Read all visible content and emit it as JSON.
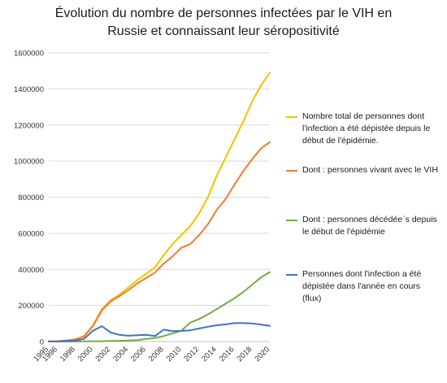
{
  "chart_data": {
    "type": "line",
    "title": [
      "Évolution du nombre de personnes infectées par le VIH en",
      "Russie et connaissant leur séropositivité"
    ],
    "x": [
      1995,
      1996,
      1997,
      1998,
      1999,
      2000,
      2001,
      2002,
      2003,
      2004,
      2005,
      2006,
      2007,
      2008,
      2009,
      2010,
      2011,
      2012,
      2013,
      2014,
      2015,
      2016,
      2017,
      2018,
      2019,
      2020
    ],
    "x_ticks": [
      "1995",
      "1996",
      "1998",
      "2000",
      "2002",
      "2004",
      "2006",
      "2008",
      "2010",
      "2012",
      "2014",
      "2016",
      "2018",
      "2020"
    ],
    "y_ticks": [
      "0",
      "200000",
      "400000",
      "600000",
      "800000",
      "1000000",
      "1200000",
      "1400000",
      "1600000"
    ],
    "ylim": [
      0,
      1600000
    ],
    "grid": "horizontal",
    "legend_position": "right",
    "series": [
      {
        "name": "Nombre total de personnes dont l'infection a été dépistée depuis le début de l'épidémie.",
        "color": "#F5C200",
        "values": [
          1000,
          2000,
          6000,
          12000,
          30000,
          90000,
          180000,
          230000,
          260000,
          300000,
          340000,
          375000,
          410000,
          480000,
          540000,
          590000,
          640000,
          710000,
          800000,
          920000,
          1020000,
          1120000,
          1220000,
          1330000,
          1420000,
          1490000
        ]
      },
      {
        "name": "Dont : personnes vivant avec le VIH",
        "color": "#ED7D31",
        "values": [
          1000,
          2000,
          6000,
          12000,
          28000,
          85000,
          172000,
          222000,
          252000,
          285000,
          322000,
          352000,
          382000,
          432000,
          472000,
          520000,
          540000,
          590000,
          650000,
          730000,
          790000,
          870000,
          945000,
          1010000,
          1070000,
          1105000
        ]
      },
      {
        "name": "Dont : personnes décédée`s depuis le début de l'épidémie",
        "color": "#70AD47",
        "values": [
          0,
          0,
          0,
          0,
          1000,
          1500,
          2000,
          3000,
          4000,
          6000,
          8000,
          14000,
          20000,
          30000,
          45000,
          60000,
          105000,
          125000,
          150000,
          180000,
          210000,
          240000,
          275000,
          315000,
          355000,
          385000
        ]
      },
      {
        "name": "Personnes dont l'infection a été dépistée dans l'année en cours (flux)",
        "color": "#4472C4",
        "values": [
          0,
          1000,
          3000,
          5000,
          15000,
          60000,
          85000,
          50000,
          37000,
          32000,
          35000,
          37000,
          30000,
          66000,
          58000,
          59000,
          62000,
          72000,
          82000,
          90000,
          95000,
          102000,
          102000,
          100000,
          94000,
          87000
        ]
      }
    ]
  }
}
